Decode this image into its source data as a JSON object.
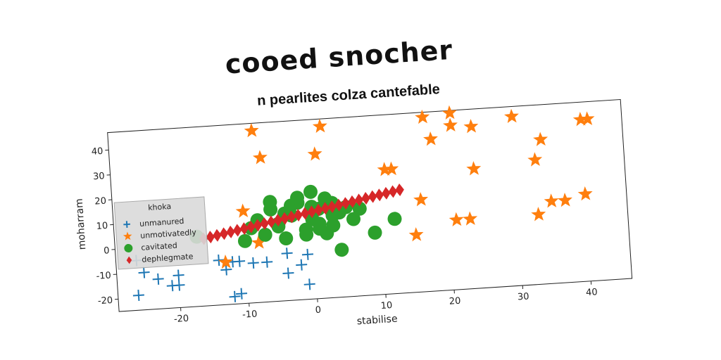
{
  "chart_data": {
    "type": "scatter",
    "title": "cooed snocher",
    "subtitle": "n pearlites colza cantefable",
    "xlabel": "stabilise",
    "ylabel": "moharram",
    "xlim": [
      -29,
      46
    ],
    "ylim": [
      -25,
      47
    ],
    "xticks": [
      -20,
      -10,
      0,
      10,
      20,
      30,
      40
    ],
    "yticks": [
      -20,
      -10,
      0,
      10,
      20,
      30,
      40
    ],
    "grid": false,
    "legend_title": "khoka",
    "legend_loc": "center left",
    "series": [
      {
        "name": "unmanured",
        "color": "#1f77b4",
        "marker": "plus",
        "x": [
          -26,
          -25,
          -23,
          -26,
          -21,
          -20,
          -20,
          -14,
          -13,
          -12,
          -11,
          -9,
          -7,
          -4,
          -2,
          -1,
          -1,
          -12,
          -11,
          -4
        ],
        "y": [
          -5,
          -10,
          -13,
          -19,
          -16,
          -12,
          -16,
          -7,
          -11,
          -8,
          -8,
          -9,
          -9,
          -14,
          -11,
          -7,
          -19,
          -22,
          -21,
          -6
        ]
      },
      {
        "name": "unmotivatedly",
        "color": "#ff7f0e",
        "marker": "star",
        "x": [
          -8,
          2,
          -7,
          1,
          17,
          21,
          21,
          24,
          18,
          30,
          11,
          12,
          24,
          33,
          34,
          40,
          41,
          16,
          15,
          21,
          23,
          33,
          35,
          37,
          40,
          -10,
          -13,
          -8
        ],
        "y": [
          44,
          44,
          33,
          33,
          45,
          46,
          41,
          40,
          36,
          43,
          25,
          25,
          23,
          25,
          33,
          40,
          40,
          12,
          -2,
          3,
          3,
          3,
          8,
          8,
          10,
          12,
          -8,
          -1
        ]
      },
      {
        "name": "cavitated",
        "color": "#2ca02c",
        "marker": "circle",
        "x": [
          -17,
          -10,
          -8,
          -6,
          -5,
          -4,
          -3,
          -2,
          -1,
          0,
          1,
          2,
          3,
          4,
          -7,
          -5,
          -3,
          -1,
          1,
          3,
          5,
          7,
          9,
          12,
          4,
          -2,
          0,
          2,
          -6,
          -4,
          1,
          3,
          6,
          -9,
          0
        ],
        "y": [
          3,
          0,
          8,
          12,
          5,
          0,
          9,
          14,
          3,
          7,
          11,
          15,
          4,
          9,
          2,
          6,
          13,
          1,
          5,
          8,
          11,
          10,
          0,
          5,
          -6,
          16,
          18,
          1,
          15,
          10,
          3,
          13,
          6,
          5,
          12
        ]
      },
      {
        "name": "dephlegmate",
        "color": "#d62728",
        "marker": "diamond",
        "x": [
          -16,
          -15,
          -14,
          -13,
          -12,
          -11,
          -10,
          -9,
          -8,
          -7,
          -6,
          -5,
          -4,
          -3,
          -2,
          -1,
          0,
          1,
          2,
          3,
          4,
          5,
          6,
          7,
          8,
          9,
          10,
          11,
          12,
          13
        ],
        "y": [
          2,
          2.5,
          3,
          3.5,
          4,
          4.5,
          5,
          5.5,
          6,
          6.5,
          7,
          7.5,
          8,
          8.5,
          9,
          9.5,
          10,
          10.5,
          11,
          11.5,
          12,
          12.5,
          13,
          13.5,
          14,
          14.5,
          15,
          15.5,
          16,
          16.5
        ]
      }
    ]
  }
}
